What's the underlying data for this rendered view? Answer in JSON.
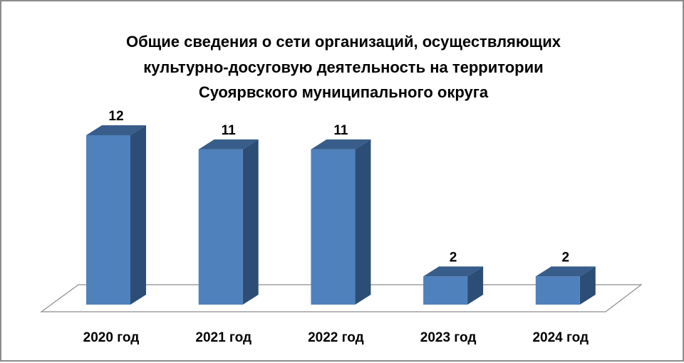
{
  "chart_data": {
    "type": "bar3d",
    "title": [
      "Общие сведения о сети организаций, осуществляющих",
      "культурно-досуговую деятельность на территории",
      "Суоярвского муниципального округа"
    ],
    "categories": [
      "2020 год",
      "2021 год",
      "2022 год",
      "2023 год",
      "2024 год"
    ],
    "values": [
      12,
      11,
      11,
      2,
      2
    ],
    "color": "#4f81bd"
  }
}
